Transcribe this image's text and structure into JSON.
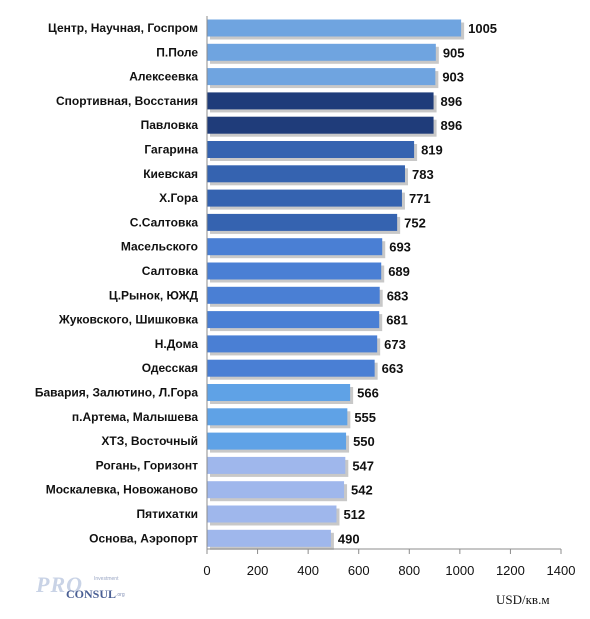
{
  "chart_data": {
    "type": "bar",
    "orientation": "horizontal",
    "categories": [
      "Центр, Научная, Госпром",
      "П.Поле",
      "Алексеевка",
      "Спортивная, Восстания",
      "Павловка",
      "Гагарина",
      "Киевская",
      "Х.Гора",
      "С.Салтовка",
      "Масельского",
      "Салтовка",
      "Ц.Рынок, ЮЖД",
      "Жуковского, Шишковка",
      "Н.Дома",
      "Одесская",
      "Бавария, Залютино, Л.Гора",
      "п.Артема, Малышева",
      "ХТЗ, Восточный",
      "Рогань, Горизонт",
      "Москалевка, Новожаново",
      "Пятихатки",
      "Основа, Аэропорт"
    ],
    "values": [
      1005,
      905,
      903,
      896,
      896,
      819,
      783,
      771,
      752,
      693,
      689,
      683,
      681,
      673,
      663,
      566,
      555,
      550,
      547,
      542,
      512,
      490
    ],
    "value_labels": [
      "1005",
      "905",
      "903",
      "896",
      "896",
      "819",
      "783",
      "771",
      "752",
      "693",
      "689",
      "683",
      "681",
      "673",
      "663",
      "566",
      "555",
      "550",
      "547",
      "542",
      "512",
      "490"
    ],
    "bar_colors": [
      "#6fa4e0",
      "#6fa4e0",
      "#6fa4e0",
      "#1f3c7a",
      "#1f3c7a",
      "#3563b0",
      "#3563b0",
      "#3563b0",
      "#3563b0",
      "#4a7fd4",
      "#4a7fd4",
      "#4a7fd4",
      "#4a7fd4",
      "#4a7fd4",
      "#4a7fd4",
      "#5fa2e6",
      "#5fa2e6",
      "#5fa2e6",
      "#9fb7ec",
      "#9fb7ec",
      "#9fb7ec",
      "#9fb7ec"
    ],
    "xlim": [
      0,
      1400
    ],
    "xticks": [
      0,
      200,
      400,
      600,
      800,
      1000,
      1200,
      1400
    ],
    "xtick_labels": [
      "0",
      "200",
      "400",
      "600",
      "800",
      "1000",
      "1200",
      "1400"
    ],
    "xlabel": "USD/кв.м",
    "grid": false,
    "legend": "none"
  },
  "logo": {
    "main": "PRO",
    "sub": "CONSUL",
    "small": "Investment",
    "org": ".org"
  }
}
